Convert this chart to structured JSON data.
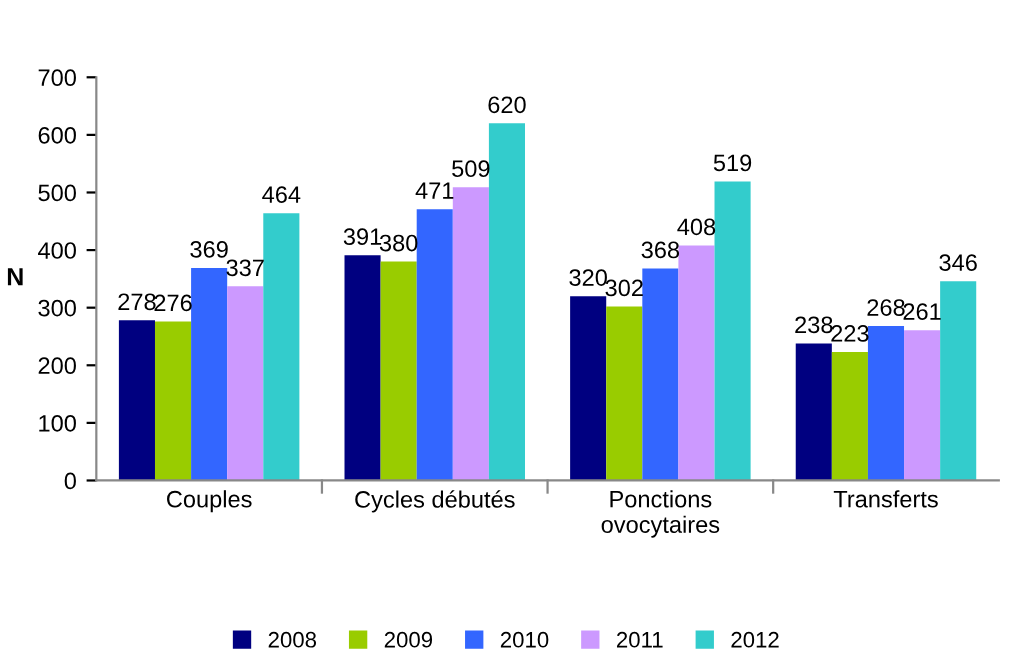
{
  "chart_data": {
    "type": "bar",
    "ylabel": "N",
    "categories": [
      "Couples",
      "Cycles débutés",
      "Ponctions\novocytaires",
      "Transferts"
    ],
    "series": [
      {
        "name": "2008",
        "color": "#000080",
        "values": [
          278,
          391,
          320,
          238
        ]
      },
      {
        "name": "2009",
        "color": "#99cc00",
        "values": [
          276,
          380,
          302,
          223
        ]
      },
      {
        "name": "2010",
        "color": "#3366ff",
        "values": [
          369,
          471,
          368,
          268
        ]
      },
      {
        "name": "2011",
        "color": "#cc99ff",
        "values": [
          337,
          509,
          408,
          261
        ]
      },
      {
        "name": "2012",
        "color": "#33cccc",
        "values": [
          464,
          620,
          519,
          346
        ]
      }
    ],
    "ylim": [
      0,
      700
    ],
    "yticks": [
      0,
      100,
      200,
      300,
      400,
      500,
      600,
      700
    ],
    "data_labels": true,
    "legend": "bottom",
    "grid": false
  }
}
